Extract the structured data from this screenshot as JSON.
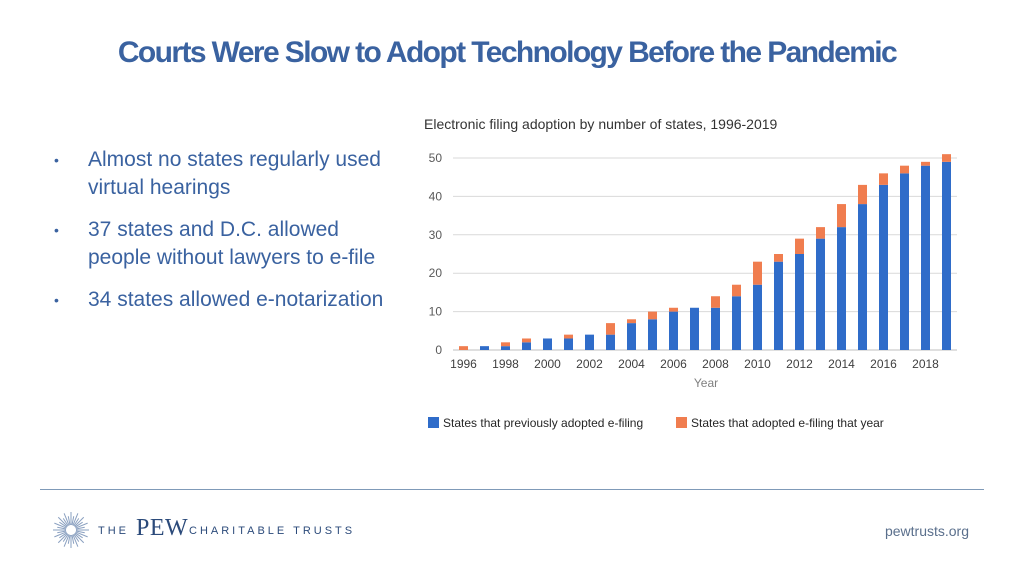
{
  "slide": {
    "title": "Courts Were Slow to Adopt Technology Before the Pandemic",
    "bullets": [
      "Almost no states regularly used virtual hearings",
      "37 states and D.C. allowed people without lawyers to e-file",
      "34 states allowed e-notarization"
    ],
    "bullet_glyph": "•",
    "accent_color": "#3a62a0"
  },
  "footer": {
    "logo_the": "THE",
    "logo_pew": "PEW",
    "logo_rest": "CHARITABLE TRUSTS",
    "website": "pewtrusts.org",
    "logo_icon": "sunburst-icon"
  },
  "chart_data": {
    "type": "bar",
    "stacked": true,
    "title": "Electronic filing adoption by number of states, 1996-2019",
    "xlabel": "Year",
    "ylabel": "",
    "ylim": [
      0,
      50
    ],
    "yticks": [
      0,
      10,
      20,
      30,
      40,
      50
    ],
    "grid": true,
    "legend_position": "bottom",
    "categories": [
      1996,
      1997,
      1998,
      1999,
      2000,
      2001,
      2002,
      2003,
      2004,
      2005,
      2006,
      2007,
      2008,
      2009,
      2010,
      2011,
      2012,
      2013,
      2014,
      2015,
      2016,
      2017,
      2018,
      2019
    ],
    "xtick_labels": [
      "1996",
      "1998",
      "2000",
      "2002",
      "2004",
      "2006",
      "2008",
      "2010",
      "2012",
      "2014",
      "2016",
      "2018"
    ],
    "series": [
      {
        "name": "States that previously adopted e-filing",
        "color": "#2f6cc9",
        "values": [
          0,
          1,
          1,
          2,
          3,
          3,
          4,
          4,
          7,
          8,
          10,
          11,
          11,
          14,
          17,
          23,
          25,
          29,
          32,
          38,
          43,
          46,
          48,
          49
        ]
      },
      {
        "name": "States that adopted e-filing that year",
        "color": "#f07d4f",
        "values": [
          1,
          0,
          1,
          1,
          0,
          1,
          0,
          3,
          1,
          2,
          1,
          0,
          3,
          3,
          6,
          2,
          4,
          3,
          6,
          5,
          3,
          2,
          1,
          2
        ]
      }
    ]
  }
}
